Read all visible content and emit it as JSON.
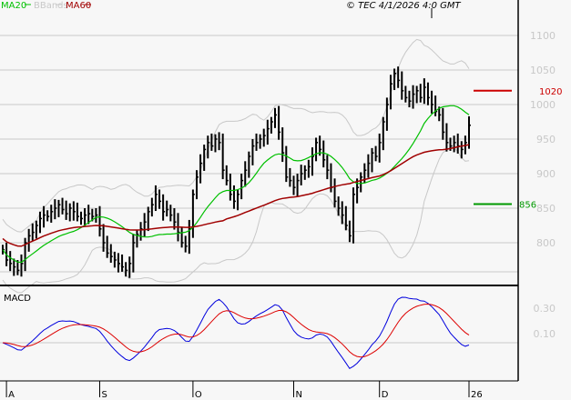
{
  "chart_data": {
    "type": "line",
    "title": "",
    "copyright": "© TEC 4/1/2026 4:0 GMT",
    "legend": [
      {
        "label": "MA20",
        "color": "#00c000"
      },
      {
        "label": "BBands",
        "color": "#c8c8c8"
      },
      {
        "label": "MA60",
        "color": "#a00000"
      }
    ],
    "price_axis": {
      "ticks": [
        "1100",
        "1050",
        "1000",
        "950",
        "900",
        "850",
        "800"
      ],
      "tick_values": [
        1100,
        1050,
        1000,
        950,
        900,
        850,
        800
      ],
      "ylim": [
        750,
        1120
      ]
    },
    "x_ticks": [
      {
        "label": "A",
        "bar": 1
      },
      {
        "label": "S",
        "bar": 26
      },
      {
        "label": "O",
        "bar": 51
      },
      {
        "label": "N",
        "bar": 78
      },
      {
        "label": "D",
        "bar": 101
      },
      {
        "label": "26",
        "bar": 125
      }
    ],
    "levels": [
      {
        "name": "resistance",
        "value": 1020,
        "label": "1020",
        "color": "#cc0000"
      },
      {
        "name": "support",
        "value": 856,
        "label": "856",
        "color": "#009900"
      }
    ],
    "closes": [
      790,
      775,
      770,
      765,
      760,
      770,
      800,
      810,
      815,
      825,
      835,
      840,
      838,
      845,
      850,
      855,
      848,
      842,
      850,
      845,
      838,
      835,
      840,
      842,
      838,
      840,
      820,
      800,
      785,
      780,
      775,
      770,
      765,
      760,
      770,
      800,
      812,
      820,
      830,
      845,
      855,
      870,
      860,
      845,
      848,
      840,
      830,
      815,
      800,
      795,
      820,
      870,
      895,
      915,
      935,
      945,
      940,
      950,
      945,
      905,
      890,
      870,
      860,
      870,
      890,
      905,
      925,
      940,
      945,
      950,
      955,
      965,
      975,
      985,
      960,
      930,
      895,
      890,
      880,
      890,
      900,
      905,
      910,
      925,
      945,
      935,
      920,
      905,
      880,
      860,
      850,
      840,
      825,
      810,
      870,
      880,
      895,
      905,
      915,
      930,
      925,
      945,
      975,
      1000,
      1030,
      1045,
      1035,
      1020,
      1010,
      1005,
      1015,
      1020,
      1010,
      1025,
      1010,
      1000,
      990,
      985,
      960,
      945,
      940,
      945,
      940,
      935,
      945,
      970
    ],
    "macd": {
      "label": "MACD",
      "ticks": [
        "0.30",
        "0.10"
      ],
      "series": [
        {
          "name": "MACD",
          "color": "#0000dd"
        },
        {
          "name": "Signal",
          "color": "#dd0000"
        }
      ]
    }
  }
}
